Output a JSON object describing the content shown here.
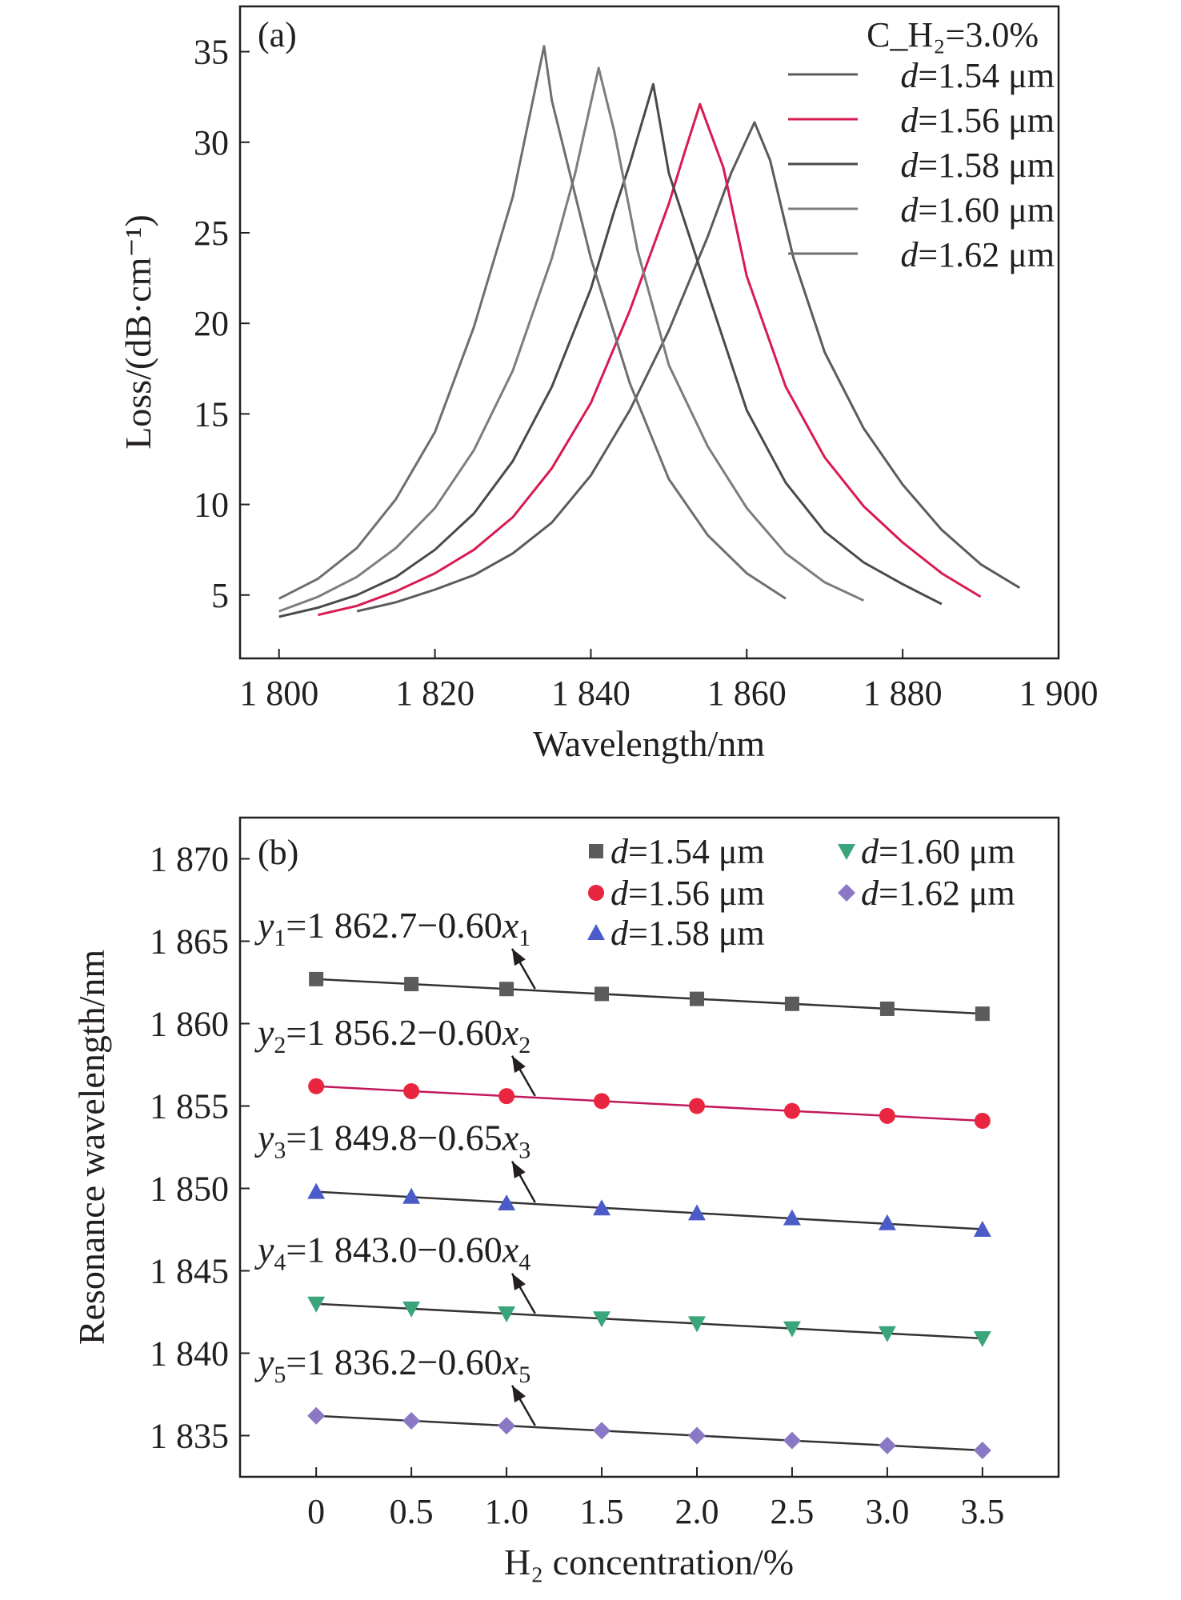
{
  "chart_data": [
    {
      "type": "line",
      "panel": "(a)",
      "annotation": "C_H₂=3.0%",
      "xlabel": "Wavelength/nm",
      "ylabel": "Loss/(dB·cm⁻¹)",
      "xlim": [
        1795,
        1900
      ],
      "ylim": [
        1.5,
        37.5
      ],
      "xticks": [
        1800,
        1820,
        1840,
        1860,
        1880,
        1900
      ],
      "xtick_labels": [
        "1 800",
        "1 820",
        "1 840",
        "1 860",
        "1 880",
        "1 900"
      ],
      "yticks": [
        5,
        10,
        15,
        20,
        25,
        30,
        35
      ],
      "ytick_labels": [
        "5",
        "10",
        "15",
        "20",
        "25",
        "30",
        "35"
      ],
      "legend_position": "top-right",
      "series": [
        {
          "name_prefix": "d",
          "name_value": "=1.54 μm",
          "color": "#5b5b5b",
          "points": [
            [
              1810,
              4.1
            ],
            [
              1815,
              4.6
            ],
            [
              1820,
              5.3
            ],
            [
              1825,
              6.1
            ],
            [
              1830,
              7.3
            ],
            [
              1835,
              9.0
            ],
            [
              1840,
              11.6
            ],
            [
              1845,
              15.2
            ],
            [
              1850,
              19.6
            ],
            [
              1855,
              24.8
            ],
            [
              1858,
              28.3
            ],
            [
              1861,
              31.1
            ],
            [
              1863,
              29.0
            ],
            [
              1866,
              23.6
            ],
            [
              1870,
              18.4
            ],
            [
              1875,
              14.2
            ],
            [
              1880,
              11.1
            ],
            [
              1885,
              8.6
            ],
            [
              1890,
              6.7
            ],
            [
              1895,
              5.4
            ]
          ]
        },
        {
          "name_prefix": "d",
          "name_value": "=1.56 μm",
          "color": "#d81b50",
          "points": [
            [
              1805,
              3.9
            ],
            [
              1810,
              4.4
            ],
            [
              1815,
              5.2
            ],
            [
              1820,
              6.2
            ],
            [
              1825,
              7.5
            ],
            [
              1830,
              9.3
            ],
            [
              1835,
              12.0
            ],
            [
              1840,
              15.6
            ],
            [
              1845,
              20.7
            ],
            [
              1850,
              26.6
            ],
            [
              1852,
              29.4
            ],
            [
              1854,
              32.1
            ],
            [
              1857,
              28.6
            ],
            [
              1860,
              22.6
            ],
            [
              1865,
              16.5
            ],
            [
              1870,
              12.6
            ],
            [
              1875,
              9.9
            ],
            [
              1880,
              7.9
            ],
            [
              1885,
              6.2
            ],
            [
              1890,
              4.9
            ]
          ]
        },
        {
          "name_prefix": "d",
          "name_value": "=1.58 μm",
          "color": "#4a4a4a",
          "points": [
            [
              1800,
              3.8
            ],
            [
              1805,
              4.3
            ],
            [
              1810,
              5.0
            ],
            [
              1815,
              6.0
            ],
            [
              1820,
              7.5
            ],
            [
              1825,
              9.5
            ],
            [
              1830,
              12.4
            ],
            [
              1835,
              16.5
            ],
            [
              1840,
              21.9
            ],
            [
              1843,
              26.2
            ],
            [
              1845,
              28.8
            ],
            [
              1848,
              33.2
            ],
            [
              1850,
              28.3
            ],
            [
              1855,
              21.7
            ],
            [
              1860,
              15.2
            ],
            [
              1865,
              11.2
            ],
            [
              1870,
              8.5
            ],
            [
              1875,
              6.8
            ],
            [
              1880,
              5.6
            ],
            [
              1885,
              4.5
            ]
          ]
        },
        {
          "name_prefix": "d",
          "name_value": "=1.60 μm",
          "color": "#7d7d7d",
          "points": [
            [
              1800,
              4.1
            ],
            [
              1805,
              4.9
            ],
            [
              1810,
              6.0
            ],
            [
              1815,
              7.6
            ],
            [
              1820,
              9.8
            ],
            [
              1825,
              13.0
            ],
            [
              1830,
              17.4
            ],
            [
              1835,
              23.6
            ],
            [
              1838,
              28.3
            ],
            [
              1841,
              34.1
            ],
            [
              1843,
              30.6
            ],
            [
              1846,
              24.0
            ],
            [
              1850,
              17.7
            ],
            [
              1855,
              13.2
            ],
            [
              1860,
              9.8
            ],
            [
              1865,
              7.3
            ],
            [
              1870,
              5.7
            ],
            [
              1875,
              4.7
            ]
          ]
        },
        {
          "name_prefix": "d",
          "name_value": "=1.62 μm",
          "color": "#6f6f6f",
          "points": [
            [
              1800,
              4.8
            ],
            [
              1805,
              5.9
            ],
            [
              1810,
              7.6
            ],
            [
              1815,
              10.3
            ],
            [
              1820,
              14.0
            ],
            [
              1825,
              19.8
            ],
            [
              1830,
              27.0
            ],
            [
              1834,
              35.3
            ],
            [
              1835,
              32.3
            ],
            [
              1840,
              23.6
            ],
            [
              1845,
              16.7
            ],
            [
              1850,
              11.4
            ],
            [
              1855,
              8.3
            ],
            [
              1860,
              6.2
            ],
            [
              1865,
              4.8
            ]
          ]
        }
      ]
    },
    {
      "type": "scatter",
      "panel": "(b)",
      "xlabel": "H₂ concentration/%",
      "ylabel": "Resonance wavelength/nm",
      "xlim": [
        -0.4,
        3.9
      ],
      "ylim": [
        1832.5,
        1872.5
      ],
      "xticks": [
        0,
        0.5,
        1.0,
        1.5,
        2.0,
        2.5,
        3.0,
        3.5
      ],
      "xtick_labels": [
        "0",
        "0.5",
        "1.0",
        "1.5",
        "2.0",
        "2.5",
        "3.0",
        "3.5"
      ],
      "yticks": [
        1835,
        1840,
        1845,
        1850,
        1855,
        1860,
        1865,
        1870
      ],
      "ytick_labels": [
        "1 835",
        "1 840",
        "1 845",
        "1 850",
        "1 855",
        "1 860",
        "1 865",
        "1 870"
      ],
      "legend_position": "top-right",
      "x": [
        0,
        0.5,
        1.0,
        1.5,
        2.0,
        2.5,
        3.0,
        3.5
      ],
      "series": [
        {
          "name_prefix": "d",
          "name_value": "=1.54 μm",
          "marker": "square",
          "color": "#5b5b5b",
          "line_color": "#333333",
          "values": [
            1862.7,
            1862.4,
            1862.1,
            1861.8,
            1861.5,
            1861.2,
            1860.9,
            1860.6
          ],
          "fit": {
            "intercept": 1862.7,
            "slope": -0.6,
            "y": "y",
            "sub": "1",
            "eq": "=1 862.7−0.60",
            "xv": "x"
          }
        },
        {
          "name_prefix": "d",
          "name_value": "=1.56 μm",
          "marker": "circle",
          "color": "#e8263f",
          "line_color": "#c2185b",
          "values": [
            1856.2,
            1855.9,
            1855.6,
            1855.3,
            1855.0,
            1854.7,
            1854.4,
            1854.1
          ],
          "fit": {
            "intercept": 1856.2,
            "slope": -0.6,
            "y": "y",
            "sub": "2",
            "eq": "=1 856.2−0.60",
            "xv": "x"
          }
        },
        {
          "name_prefix": "d",
          "name_value": "=1.58 μm",
          "marker": "triangle-up",
          "color": "#4b5bc8",
          "line_color": "#333333",
          "values": [
            1849.8,
            1849.5,
            1849.1,
            1848.8,
            1848.5,
            1848.2,
            1847.9,
            1847.5
          ],
          "fit": {
            "intercept": 1849.8,
            "slope": -0.65,
            "y": "y",
            "sub": "3",
            "eq": "=1 849.8−0.65",
            "xv": "x"
          }
        },
        {
          "name_prefix": "d",
          "name_value": "=1.60 μm",
          "marker": "triangle-down",
          "color": "#3aa57a",
          "line_color": "#333333",
          "values": [
            1843.0,
            1842.7,
            1842.4,
            1842.1,
            1841.8,
            1841.5,
            1841.2,
            1840.9
          ],
          "fit": {
            "intercept": 1843.0,
            "slope": -0.6,
            "y": "y",
            "sub": "4",
            "eq": "=1 843.0−0.60",
            "xv": "x"
          }
        },
        {
          "name_prefix": "d",
          "name_value": "=1.62 μm",
          "marker": "diamond",
          "color": "#8a78c4",
          "line_color": "#333333",
          "values": [
            1836.2,
            1835.9,
            1835.6,
            1835.3,
            1835.0,
            1834.7,
            1834.4,
            1834.1
          ],
          "fit": {
            "intercept": 1836.2,
            "slope": -0.6,
            "y": "y",
            "sub": "5",
            "eq": "=1 836.2−0.60",
            "xv": "x"
          }
        }
      ]
    }
  ]
}
